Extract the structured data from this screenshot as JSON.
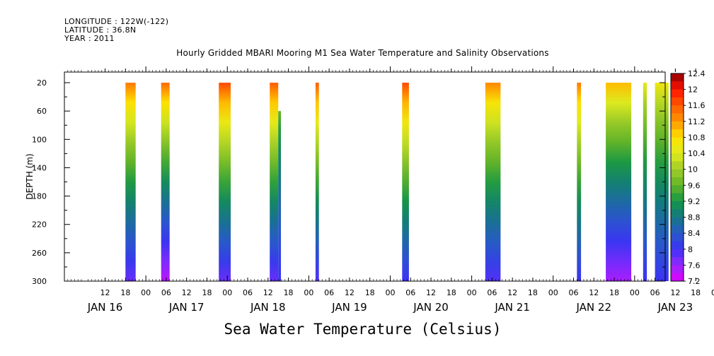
{
  "header": {
    "longitude": "LONGITUDE : 122W(-122)",
    "latitude": "LATITUDE : 36.8N",
    "year": "YEAR : 2011"
  },
  "chart_data": {
    "type": "heatmap",
    "title": "Hourly Gridded MBARI Mooring M1 Sea Water Temperature and Salinity Observations",
    "xlabel": "Sea Water Temperature (Celsius)",
    "ylabel": "DEPTH (m)",
    "x_range_hours": [
      0,
      177
    ],
    "x_hour_ticks": [
      "12",
      "18",
      "00",
      "06",
      "12",
      "18",
      "00",
      "06",
      "12",
      "18",
      "00",
      "06",
      "12",
      "18",
      "00",
      "06",
      "12",
      "18",
      "00",
      "06",
      "12",
      "18",
      "00",
      "06",
      "12",
      "18",
      "00",
      "06",
      "12",
      "18",
      "00",
      "06"
    ],
    "x_date_labels": [
      "JAN 16",
      "JAN 17",
      "JAN 18",
      "JAN 19",
      "JAN 20",
      "JAN 21",
      "JAN 22",
      "JAN 23"
    ],
    "y_ticks": [
      20,
      60,
      100,
      140,
      180,
      220,
      260,
      300
    ],
    "ylim": [
      5,
      300
    ],
    "y_reversed": true,
    "colorbar": {
      "min": 7.2,
      "max": 12.4,
      "step": 0.2,
      "tick_labels": [
        "12.4",
        "12",
        "11.6",
        "11.2",
        "10.8",
        "10.4",
        "10",
        "9.6",
        "9.2",
        "8.8",
        "8.4",
        "8",
        "7.6",
        "7.2"
      ]
    },
    "data_columns": [
      {
        "start_hour": 18.0,
        "end_hour": 21.0,
        "surface_temp": 11.4,
        "bottom_temp": 7.8
      },
      {
        "start_hour": 28.5,
        "end_hour": 31.0,
        "surface_temp": 11.5,
        "bottom_temp": 7.4
      },
      {
        "start_hour": 45.5,
        "end_hour": 49.0,
        "surface_temp": 11.7,
        "bottom_temp": 7.8
      },
      {
        "start_hour": 60.5,
        "end_hour": 63.0,
        "surface_temp": 11.6,
        "bottom_temp": 7.8
      },
      {
        "start_hour": 63.0,
        "end_hour": 63.8,
        "surface_temp": 9.6,
        "bottom_temp": 8.0,
        "top_depth": 60
      },
      {
        "start_hour": 74.0,
        "end_hour": 75.0,
        "surface_temp": 11.6,
        "bottom_temp": 7.9
      },
      {
        "start_hour": 99.5,
        "end_hour": 101.5,
        "surface_temp": 11.7,
        "bottom_temp": 8.0
      },
      {
        "start_hour": 124.0,
        "end_hour": 128.5,
        "surface_temp": 11.3,
        "bottom_temp": 7.9
      },
      {
        "start_hour": 151.0,
        "end_hour": 152.2,
        "surface_temp": 11.4,
        "bottom_temp": 8.0
      },
      {
        "start_hour": 159.5,
        "end_hour": 167.0,
        "surface_temp": 11.0,
        "bottom_temp": 7.5
      },
      {
        "start_hour": 170.5,
        "end_hour": 171.6,
        "surface_temp": 10.5,
        "bottom_temp": 8.0
      },
      {
        "start_hour": 174.0,
        "end_hour": 178.0,
        "surface_temp": 10.6,
        "bottom_temp": 8.0
      }
    ]
  }
}
